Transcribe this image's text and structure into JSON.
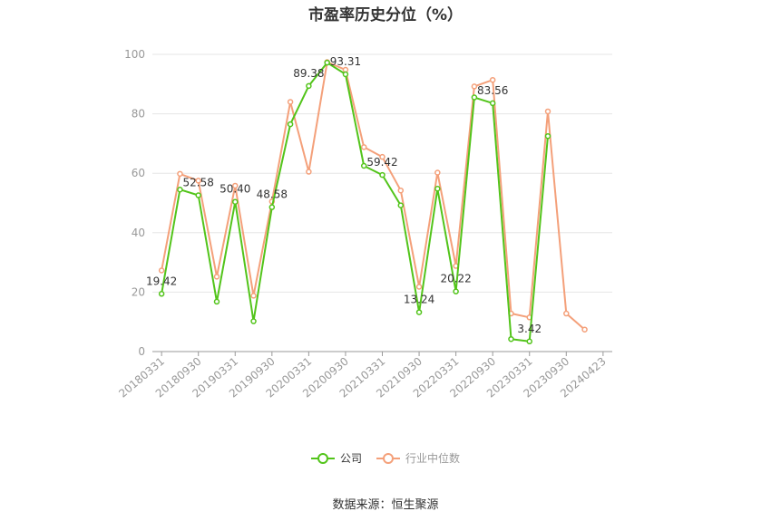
{
  "chart_data": {
    "type": "line",
    "title": "市盈率历史分位（%）",
    "xlabel": "",
    "ylabel": "",
    "ylim": [
      0,
      100
    ],
    "yticks": [
      "0",
      "20",
      "40",
      "60",
      "80",
      "100"
    ],
    "grid": true,
    "legend_position": "bottom",
    "x": [
      "20180331",
      "20180630",
      "20180930",
      "20181231",
      "20190331",
      "20190630",
      "20190930",
      "20191231",
      "20200331",
      "20200630",
      "20200930",
      "20201231",
      "20210331",
      "20210630",
      "20210930",
      "20211231",
      "20220331",
      "20220630",
      "20220930",
      "20221231",
      "20230331",
      "20230630",
      "20230930",
      "20231231",
      "20240423"
    ],
    "xtick_labels": [
      "20180331",
      "20180930",
      "20190331",
      "20190930",
      "20200331",
      "20200930",
      "20210331",
      "20210930",
      "20220331",
      "20220930",
      "20230331",
      "20230930",
      "20240423"
    ],
    "series": [
      {
        "name": "公司",
        "color": "#52c41a",
        "values": [
          19.42,
          54.5,
          52.58,
          16.8,
          50.4,
          10.2,
          48.58,
          76.5,
          89.38,
          97.2,
          93.31,
          62.5,
          59.42,
          49.2,
          13.24,
          54.8,
          20.22,
          85.5,
          83.56,
          4.2,
          3.42,
          72.5,
          null,
          null,
          null
        ],
        "labels": {
          "0": "19.42",
          "2": "52.58",
          "4": "50.40",
          "6": "48.58",
          "8": "89.38",
          "10": "93.31",
          "12": "59.42",
          "14": "13.24",
          "16": "20.22",
          "18": "83.56",
          "20": "3.42"
        }
      },
      {
        "name": "行业中位数",
        "color": "#f4a07a",
        "values": [
          27.3,
          59.8,
          57.5,
          25.2,
          55.8,
          18.8,
          50.5,
          84.0,
          60.5,
          97.4,
          94.8,
          68.8,
          65.5,
          54.2,
          21.8,
          60.2,
          28.8,
          89.2,
          91.4,
          12.8,
          11.5,
          80.8,
          12.8,
          7.4,
          null
        ]
      }
    ]
  },
  "source": "数据来源：恒生聚源"
}
